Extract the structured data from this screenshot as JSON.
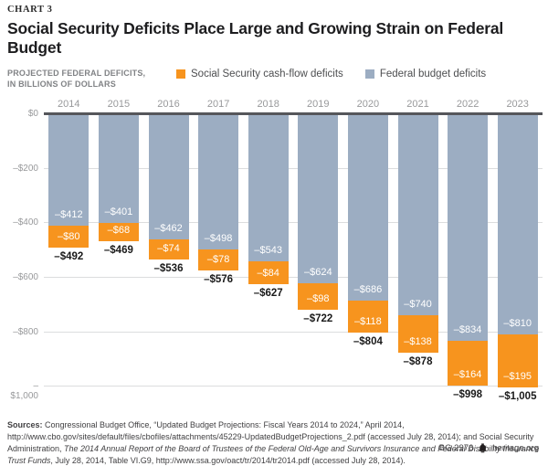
{
  "header": {
    "kicker": "CHART 3",
    "title": "Social Security Deficits Place Large and Growing Strain on Federal Budget"
  },
  "subtitle": {
    "line1": "PROJECTED FEDERAL DEFICITS,",
    "line2": "IN BILLIONS OF DOLLARS"
  },
  "legend": [
    {
      "label": "Social Security cash-flow deficits",
      "color": "#f7941e"
    },
    {
      "label": "Federal budget deficits",
      "color": "#9cadc2"
    }
  ],
  "colors": {
    "orange": "#f7941e",
    "blue_gray": "#9cadc2",
    "grid": "#dcddde",
    "zero_axis": "#55565a"
  },
  "chart_data": {
    "type": "bar",
    "stacked": true,
    "title": "Social Security Deficits Place Large and Growing Strain on Federal Budget",
    "xlabel": "",
    "ylabel": "PROJECTED FEDERAL DEFICITS, IN BILLIONS OF DOLLARS",
    "ylim": [
      0,
      -1000
    ],
    "grid": true,
    "legend_position": "top",
    "categories": [
      "2014",
      "2015",
      "2016",
      "2017",
      "2018",
      "2019",
      "2020",
      "2021",
      "2022",
      "2023"
    ],
    "series": [
      {
        "name": "Federal budget deficits",
        "color": "#9cadc2",
        "values": [
          -412,
          -401,
          -462,
          -498,
          -543,
          -624,
          -686,
          -740,
          -834,
          -810
        ],
        "labels": [
          "–$412",
          "–$401",
          "–$462",
          "–$498",
          "–$543",
          "–$624",
          "–$686",
          "–$740",
          "–$834",
          "–$810"
        ]
      },
      {
        "name": "Social Security cash-flow deficits",
        "color": "#f7941e",
        "values": [
          -80,
          -68,
          -74,
          -78,
          -84,
          -98,
          -118,
          -138,
          -164,
          -195
        ],
        "labels": [
          "–$80",
          "–$68",
          "–$74",
          "–$78",
          "–$84",
          "–$98",
          "–$118",
          "–$138",
          "–$164",
          "–$195"
        ]
      }
    ],
    "totals": [
      -492,
      -469,
      -536,
      -576,
      -627,
      -722,
      -804,
      -878,
      -998,
      -1005
    ],
    "total_labels": [
      "–$492",
      "–$469",
      "–$536",
      "–$576",
      "–$627",
      "–$722",
      "–$804",
      "–$878",
      "–$998",
      "–$1,005"
    ],
    "y_ticks": [
      {
        "value": 0,
        "label": "$0"
      },
      {
        "value": -200,
        "label": "–$200"
      },
      {
        "value": -400,
        "label": "–$400"
      },
      {
        "value": -600,
        "label": "–$600"
      },
      {
        "value": -800,
        "label": "–$800"
      },
      {
        "value": -1000,
        "label": "–$1,000"
      }
    ]
  },
  "sources": {
    "segments": [
      {
        "text": "Sources: ",
        "bold": true
      },
      {
        "text": "Congressional Budget Office, “Updated Budget Projections: Fiscal Years 2014 to 2024,” April 2014, http://www.cbo.gov/sites/default/files/cbofiles/attachments/45229-UpdatedBudgetProjections_2.pdf (accessed July 28, 2014); and Social Security Administration, "
      },
      {
        "text": "The 2014 Annual Report of the Board of Trustees of the Federal Old-Age and Survivors Insurance and Federal Disability Insurance Trust Funds",
        "italic": true
      },
      {
        "text": ", July 28, 2014, Table VI.G9, http://www.ssa.gov/oact/tr/2014/tr2014.pdf (accessed July 28, 2014)."
      }
    ]
  },
  "footer": {
    "id": "BG 2976",
    "site": "heritage.org"
  }
}
